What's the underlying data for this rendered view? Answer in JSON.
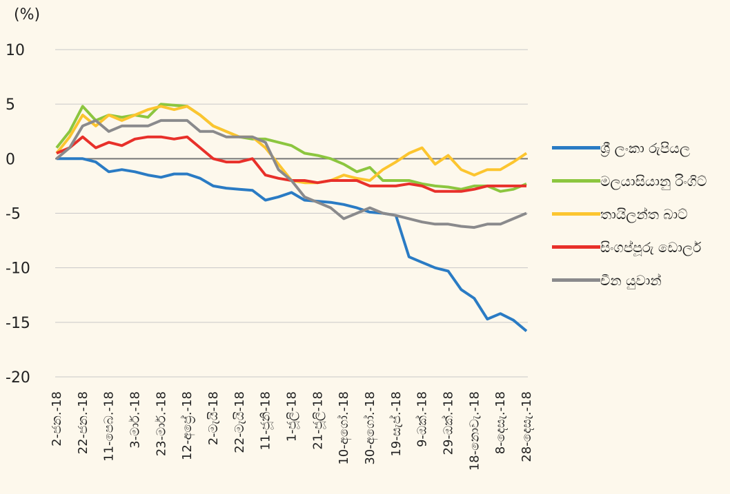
{
  "chart_data": {
    "type": "line",
    "y_label": "(%)",
    "categories": [
      "2-ජන.-18",
      null,
      "22-ජන.-18",
      null,
      "11-පෙබ.-18",
      null,
      "3-මාර්.-18",
      null,
      "23-මාර්.-18",
      null,
      "12-අප්‍රේ.-18",
      null,
      "2-මැයි-18",
      null,
      "22-මැයි-18",
      null,
      "11-ජූනි-18",
      null,
      "1-ජූලි-18",
      null,
      "21-ජූලි-18",
      null,
      "10-අගෝ.-18",
      null,
      "30-අගෝ.-18",
      null,
      "19-සැප්.-18",
      null,
      "9-ඔක්.-18",
      null,
      "29-ඔක්.-18",
      null,
      "18-නොවැ.-18",
      null,
      "8-දෙසැ.-18",
      null,
      "28-දෙසැ.-18"
    ],
    "series": [
      {
        "name": "ශ්‍රී ලංකා රුපියල",
        "color": "#2a7bc4",
        "values": [
          0,
          0,
          0,
          -0.3,
          -1.2,
          -1,
          -1.2,
          -1.5,
          -1.7,
          -1.4,
          -1.4,
          -1.8,
          -2.5,
          -2.7,
          -2.8,
          -2.9,
          -3.8,
          -3.5,
          -3.1,
          -3.8,
          -3.9,
          -4,
          -4.2,
          -4.5,
          -4.9,
          -5,
          -5.2,
          -9,
          -9.5,
          -10,
          -10.3,
          -12,
          -12.8,
          -14.7,
          -14.2,
          -14.8,
          -15.8
        ]
      },
      {
        "name": "මලයාසියානු රිංගිට්",
        "color": "#8cc63f",
        "values": [
          1,
          2.5,
          4.8,
          3.5,
          4,
          3.8,
          4,
          3.8,
          5,
          4.9,
          4.8,
          4,
          3,
          2.5,
          2,
          1.8,
          1.8,
          1.5,
          1.2,
          0.5,
          0.3,
          0,
          -0.5,
          -1.2,
          -0.8,
          -2,
          -2,
          -2,
          -2.3,
          -2.5,
          -2.6,
          -2.8,
          -2.5,
          -2.5,
          -3,
          -2.8,
          -2.3
        ]
      },
      {
        "name": "තායිලන්ත බාට්",
        "color": "#fcc52f",
        "values": [
          0.5,
          2,
          4,
          3,
          4,
          3.5,
          4,
          4.5,
          4.8,
          4.5,
          4.8,
          4,
          3,
          2.5,
          2,
          2,
          1,
          -0.5,
          -2,
          -2.2,
          -2.2,
          -2,
          -1.5,
          -1.8,
          -2,
          -1,
          -0.3,
          0.5,
          1,
          -0.5,
          0.3,
          -1,
          -1.5,
          -1,
          -1,
          -0.3,
          0.5
        ]
      },
      {
        "name": "සිංගප්පූරු ඩොලර්",
        "color": "#e8302a",
        "values": [
          0.5,
          1,
          2,
          1,
          1.5,
          1.2,
          1.8,
          2,
          2,
          1.8,
          2,
          1,
          0,
          -0.3,
          -0.3,
          0,
          -1.5,
          -1.8,
          -2,
          -2,
          -2.2,
          -2,
          -2,
          -2,
          -2.5,
          -2.5,
          -2.5,
          -2.3,
          -2.5,
          -3,
          -3,
          -3,
          -2.8,
          -2.5,
          -2.5,
          -2.5,
          -2.5
        ]
      },
      {
        "name": "චීන යුවාන්",
        "color": "#8a8a8c",
        "values": [
          0,
          1,
          3,
          3.5,
          2.5,
          3,
          3,
          3,
          3.5,
          3.5,
          3.5,
          2.5,
          2.5,
          2,
          2,
          2,
          1.5,
          -1,
          -2,
          -3.5,
          -4,
          -4.5,
          -5.5,
          -5,
          -4.5,
          -5,
          -5.2,
          -5.5,
          -5.8,
          -6,
          -6,
          -6.2,
          -6.3,
          -6,
          -6,
          -5.5,
          -5
        ]
      }
    ],
    "ylim": [
      -20,
      10
    ],
    "yticks": [
      -20,
      -15,
      -10,
      -5,
      0,
      5,
      10
    ],
    "grid": true
  }
}
